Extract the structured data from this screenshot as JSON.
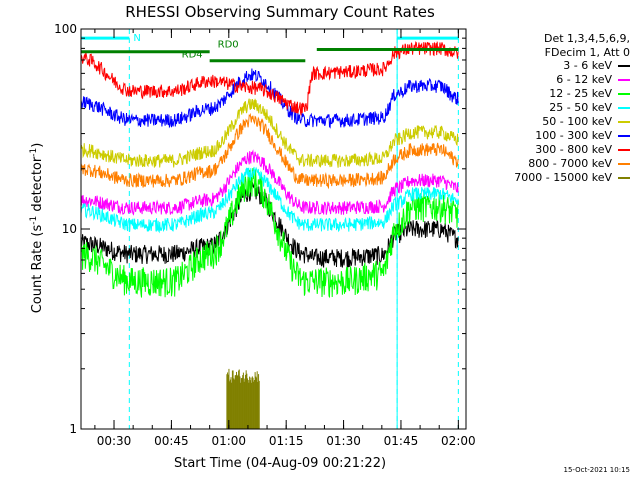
{
  "chart_data": {
    "type": "line",
    "title": "RHESSI Observing Summary Count Rates",
    "xlabel": "Start Time (04-Aug-09 00:21:22)",
    "ylabel_main": "Count Rate (s",
    "ylabel_sup": "-1",
    "ylabel_rest": " detector",
    "ylabel_sup2": "-1",
    "ylabel_end": ")",
    "y_scale": "log",
    "ylim": [
      1,
      100
    ],
    "xlim_minutes": [
      21.37,
      122
    ],
    "x_ticks": [
      {
        "label": "00:30",
        "minutes": 30
      },
      {
        "label": "00:45",
        "minutes": 45
      },
      {
        "label": "01:00",
        "minutes": 60
      },
      {
        "label": "01:15",
        "minutes": 75
      },
      {
        "label": "01:30",
        "minutes": 90
      },
      {
        "label": "01:45",
        "minutes": 105
      },
      {
        "label": "02:00",
        "minutes": 120
      }
    ],
    "y_ticks": [
      {
        "label": "1",
        "value": 1
      },
      {
        "label": "10",
        "value": 10
      },
      {
        "label": "100",
        "value": 100
      }
    ],
    "legend_header": [
      "Det 1,3,4,5,6,9,",
      "FDecim 1, Att 0"
    ],
    "series": [
      {
        "name": "3 - 6 keV",
        "color": "#000000",
        "levels": [
          [
            21.37,
            8.5
          ],
          [
            35,
            7.5
          ],
          [
            45,
            7.5
          ],
          [
            55,
            8.2
          ],
          [
            66,
            15.5
          ],
          [
            80,
            7.5
          ],
          [
            82,
            7.2
          ],
          [
            90,
            7.2
          ],
          [
            100,
            7.4
          ],
          [
            104,
            9.5
          ],
          [
            108,
            10
          ],
          [
            115,
            10
          ],
          [
            120,
            9
          ]
        ]
      },
      {
        "name": "6 - 12 keV",
        "color": "#ff00ff",
        "levels": [
          [
            21.37,
            14
          ],
          [
            35,
            12.8
          ],
          [
            45,
            12.8
          ],
          [
            55,
            14
          ],
          [
            66,
            23
          ],
          [
            80,
            12.8
          ],
          [
            82,
            12.8
          ],
          [
            90,
            12.8
          ],
          [
            100,
            13
          ],
          [
            104,
            16
          ],
          [
            108,
            17.5
          ],
          [
            115,
            17.5
          ],
          [
            120,
            16
          ]
        ]
      },
      {
        "name": "12 - 25 keV",
        "color": "#00ff00",
        "levels": [
          [
            21.37,
            7.5
          ],
          [
            35,
            5.5
          ],
          [
            45,
            5.5
          ],
          [
            55,
            7.5
          ],
          [
            66,
            17.5
          ],
          [
            80,
            5.5
          ],
          [
            82,
            5.5
          ],
          [
            90,
            5.5
          ],
          [
            100,
            6
          ],
          [
            104,
            10.5
          ],
          [
            108,
            13
          ],
          [
            115,
            13
          ],
          [
            120,
            12
          ]
        ]
      },
      {
        "name": "25 - 50 keV",
        "color": "#00ffff",
        "levels": [
          [
            21.37,
            12.5
          ],
          [
            35,
            10.5
          ],
          [
            45,
            10.5
          ],
          [
            55,
            12
          ],
          [
            66,
            19
          ],
          [
            80,
            10.5
          ],
          [
            82,
            10.5
          ],
          [
            90,
            10.5
          ],
          [
            100,
            10.8
          ],
          [
            104,
            13.5
          ],
          [
            108,
            15
          ],
          [
            115,
            15
          ],
          [
            120,
            14
          ]
        ]
      },
      {
        "name": "50 - 100 keV",
        "color": "#cccc00",
        "levels": [
          [
            21.37,
            25
          ],
          [
            35,
            22
          ],
          [
            45,
            22
          ],
          [
            55,
            24.5
          ],
          [
            66,
            42
          ],
          [
            80,
            22
          ],
          [
            82,
            22
          ],
          [
            90,
            22
          ],
          [
            100,
            22.5
          ],
          [
            104,
            28
          ],
          [
            108,
            30.5
          ],
          [
            115,
            30.5
          ],
          [
            120,
            28
          ]
        ]
      },
      {
        "name": "100 - 300 keV",
        "color": "#0000ff",
        "levels": [
          [
            21.37,
            43
          ],
          [
            35,
            35
          ],
          [
            45,
            35
          ],
          [
            55,
            40
          ],
          [
            66,
            59
          ],
          [
            80,
            35
          ],
          [
            82,
            35
          ],
          [
            90,
            35
          ],
          [
            100,
            36
          ],
          [
            104,
            48
          ],
          [
            108,
            52
          ],
          [
            115,
            52
          ],
          [
            120,
            45
          ]
        ]
      },
      {
        "name": "300 - 800 keV",
        "color": "#ff0000",
        "levels": [
          [
            21.37,
            72
          ],
          [
            35,
            49
          ],
          [
            45,
            49
          ],
          [
            55,
            55
          ],
          [
            66,
            51
          ],
          [
            80,
            40
          ],
          [
            82,
            60
          ],
          [
            90,
            61
          ],
          [
            100,
            63
          ],
          [
            104,
            77
          ],
          [
            108,
            80
          ],
          [
            115,
            80
          ],
          [
            120,
            76
          ]
        ]
      },
      {
        "name": "800 - 7000 keV",
        "color": "#ff7f00",
        "levels": [
          [
            21.37,
            20
          ],
          [
            35,
            17.5
          ],
          [
            45,
            17.5
          ],
          [
            55,
            19.5
          ],
          [
            66,
            35
          ],
          [
            80,
            17.5
          ],
          [
            82,
            17.5
          ],
          [
            90,
            17.5
          ],
          [
            100,
            18
          ],
          [
            104,
            23
          ],
          [
            108,
            25
          ],
          [
            115,
            25
          ],
          [
            120,
            22
          ]
        ]
      },
      {
        "name": "7000 - 15000 keV",
        "color": "#808000",
        "levels": [
          [
            59.5,
            2
          ],
          [
            68,
            2
          ]
        ]
      }
    ],
    "annotations": {
      "RD0": {
        "label": "RD0",
        "x_start": 55,
        "x_end": 80,
        "y": 77
      },
      "RD4": {
        "label": "RD4",
        "x_start": 21.37,
        "x_end": 55,
        "y": 77
      },
      "green_bar_right": {
        "x_start": 83,
        "x_end": 120,
        "y": 79
      },
      "N": {
        "label": "N",
        "x_start": 21.37,
        "x_end": 34,
        "y": 90
      },
      "cyan_bar_right": {
        "x_start": 104,
        "x_end": 120,
        "y": 90
      },
      "night_boundaries": [
        34,
        104,
        120
      ],
      "solid_cyan_boundaries": [
        21.37,
        104
      ]
    }
  },
  "timestamp": "15-Oct-2021 10:15"
}
